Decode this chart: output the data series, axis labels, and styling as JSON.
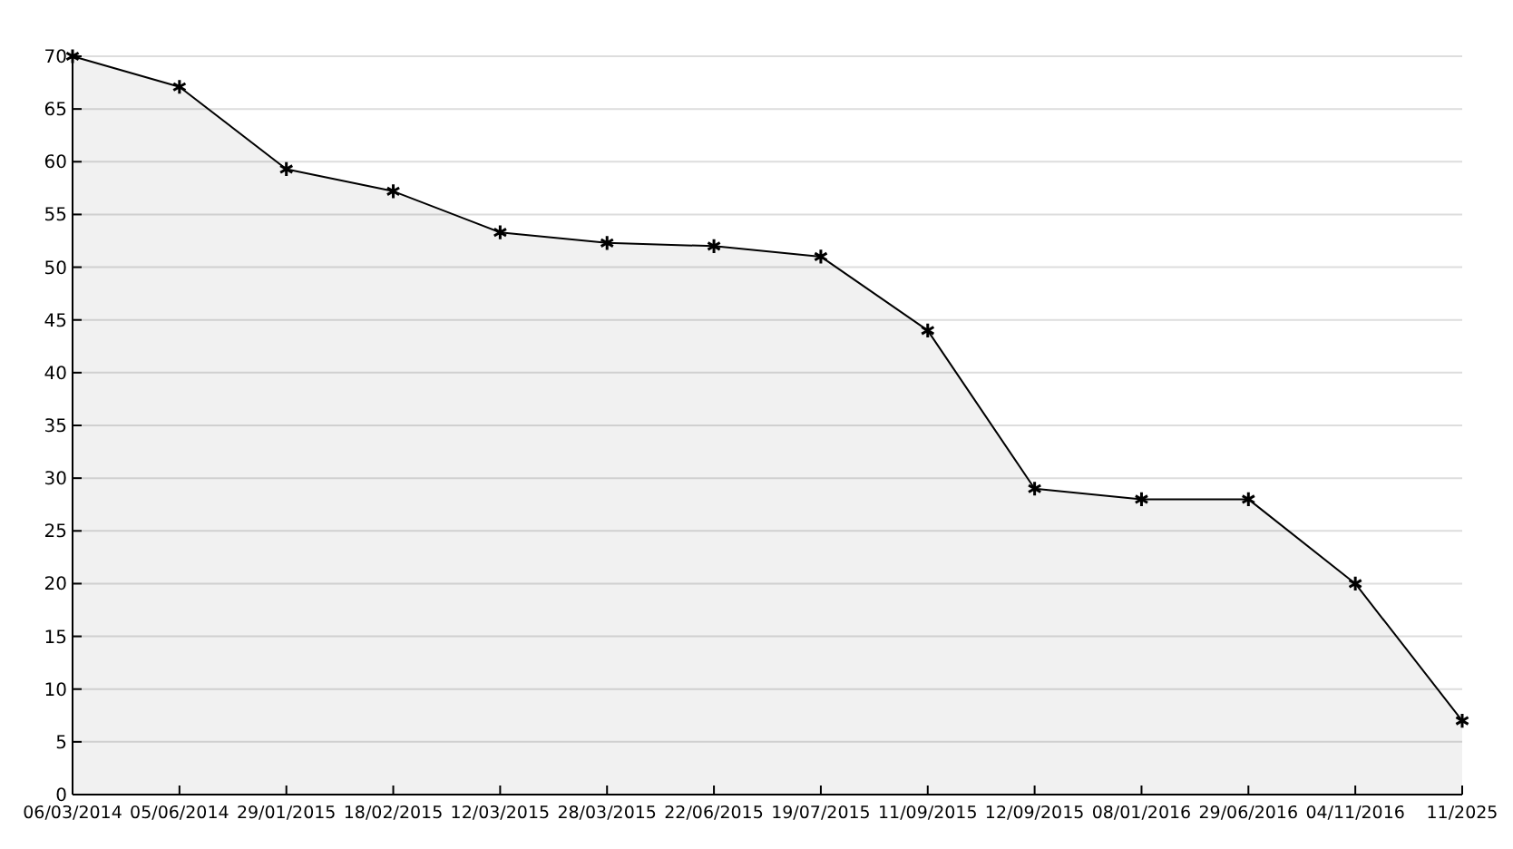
{
  "chart_data": {
    "type": "area",
    "categories": [
      "06/03/2014",
      "05/06/2014",
      "29/01/2015",
      "18/02/2015",
      "12/03/2015",
      "28/03/2015",
      "22/06/2015",
      "19/07/2015",
      "11/09/2015",
      "12/09/2015",
      "08/01/2016",
      "29/06/2016",
      "04/11/2016",
      "11/2025"
    ],
    "series": [
      {
        "color": "#000000",
        "values": [
          70,
          67.1,
          59.3,
          57.2,
          53.3,
          52.3,
          52,
          51,
          44,
          29,
          28,
          28,
          20,
          7
        ]
      }
    ],
    "ylim": [
      0,
      70
    ],
    "yticks": [
      0,
      5,
      10,
      15,
      20,
      25,
      30,
      35,
      40,
      45,
      50,
      55,
      60,
      65,
      70
    ],
    "grid": "y",
    "marker": "cross",
    "line_style": "solid"
  }
}
